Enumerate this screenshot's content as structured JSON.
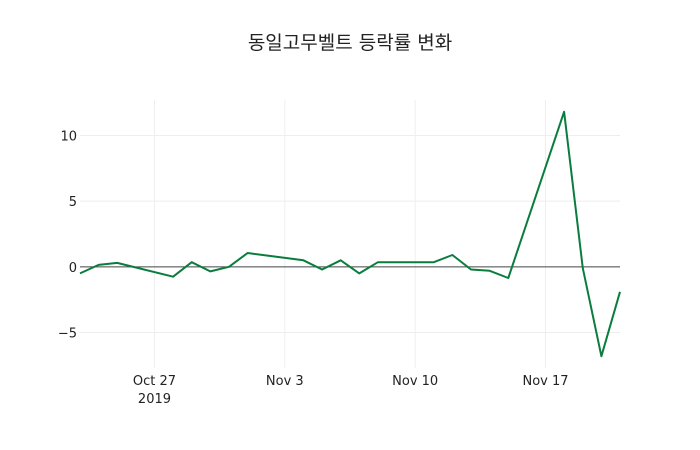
{
  "chart_data": {
    "type": "line",
    "title": "동일고무벨트 등락률 변화",
    "xlabel": "",
    "ylabel": "",
    "x": [
      "2019-10-23",
      "2019-10-24",
      "2019-10-25",
      "2019-10-28",
      "2019-10-29",
      "2019-10-30",
      "2019-10-31",
      "2019-11-01",
      "2019-11-04",
      "2019-11-05",
      "2019-11-06",
      "2019-11-07",
      "2019-11-08",
      "2019-11-11",
      "2019-11-12",
      "2019-11-13",
      "2019-11-14",
      "2019-11-15",
      "2019-11-18",
      "2019-11-19",
      "2019-11-20",
      "2019-11-21"
    ],
    "series": [
      {
        "name": "등락률",
        "color": "#0a7c3e",
        "values": [
          -0.5,
          0.15,
          0.3,
          -0.75,
          0.35,
          -0.35,
          0.0,
          1.05,
          0.5,
          -0.2,
          0.5,
          -0.5,
          0.35,
          0.35,
          0.9,
          -0.2,
          -0.3,
          -0.85,
          11.8,
          -0.1,
          -6.8,
          -1.9
        ]
      }
    ],
    "x_range": [
      "2019-10-23",
      "2019-11-21"
    ],
    "ylim": [
      -7.7,
      12.7
    ],
    "x_ticks": [
      {
        "date": "2019-10-27",
        "label": "Oct 27",
        "sublabel": "2019"
      },
      {
        "date": "2019-11-03",
        "label": "Nov 3",
        "sublabel": ""
      },
      {
        "date": "2019-11-10",
        "label": "Nov 10",
        "sublabel": ""
      },
      {
        "date": "2019-11-17",
        "label": "Nov 17",
        "sublabel": ""
      }
    ],
    "y_ticks": [
      {
        "value": 10,
        "label": "10"
      },
      {
        "value": 5,
        "label": "5"
      },
      {
        "value": 0,
        "label": "0"
      },
      {
        "value": -5,
        "label": "−5"
      }
    ],
    "grid": true,
    "zero_line": true,
    "legend": "none"
  }
}
